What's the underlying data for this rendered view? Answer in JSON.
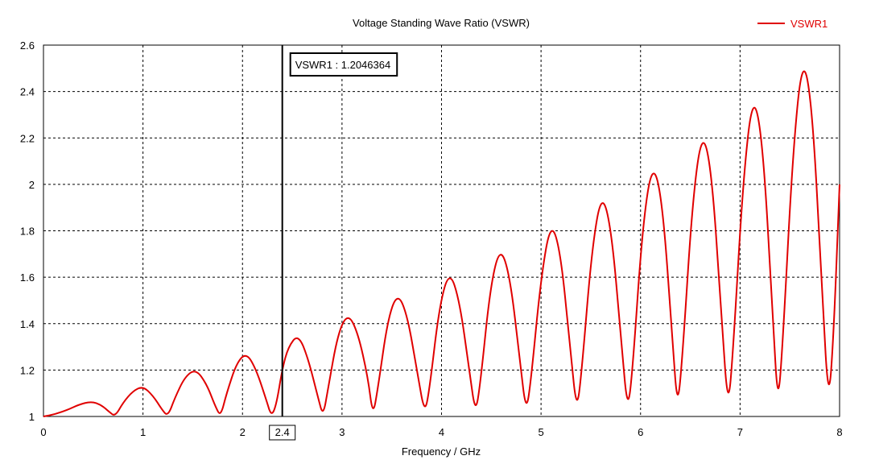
{
  "chart_data": {
    "type": "line",
    "title": "Voltage Standing Wave Ratio (VSWR)",
    "xlabel": "Frequency / GHz",
    "ylabel": "",
    "xlim": [
      0,
      8
    ],
    "ylim": [
      1,
      2.6
    ],
    "x_ticks": [
      "0",
      "1",
      "2",
      "3",
      "4",
      "5",
      "6",
      "7",
      "8"
    ],
    "y_ticks": [
      "1",
      "1.2",
      "1.4",
      "1.6",
      "1.8",
      "2",
      "2.2",
      "2.4",
      "2.6"
    ],
    "grid": true,
    "legend_position": "top-right",
    "series": [
      {
        "name": "VSWR1",
        "color": "#e00000",
        "x": [
          0,
          0.12,
          0.25,
          0.35,
          0.48,
          0.58,
          0.66,
          0.72,
          0.8,
          0.9,
          1.0,
          1.1,
          1.19,
          1.25,
          1.32,
          1.42,
          1.53,
          1.64,
          1.73,
          1.78,
          1.84,
          1.94,
          2.04,
          2.14,
          2.24,
          2.29,
          2.34,
          2.4,
          2.46,
          2.56,
          2.66,
          2.76,
          2.81,
          2.86,
          2.96,
          3.06,
          3.16,
          3.26,
          3.31,
          3.36,
          3.46,
          3.56,
          3.66,
          3.76,
          3.83,
          3.88,
          3.98,
          4.08,
          4.18,
          4.28,
          4.34,
          4.39,
          4.49,
          4.59,
          4.69,
          4.79,
          4.85,
          4.9,
          5.0,
          5.1,
          5.2,
          5.3,
          5.36,
          5.41,
          5.51,
          5.61,
          5.71,
          5.81,
          5.87,
          5.92,
          6.02,
          6.12,
          6.22,
          6.32,
          6.37,
          6.42,
          6.52,
          6.62,
          6.72,
          6.82,
          6.88,
          6.93,
          7.03,
          7.13,
          7.23,
          7.33,
          7.38,
          7.43,
          7.53,
          7.63,
          7.73,
          7.83,
          7.89,
          7.94,
          8.0
        ],
        "y": [
          1.0,
          1.01,
          1.03,
          1.05,
          1.065,
          1.05,
          1.02,
          1.0,
          1.06,
          1.11,
          1.13,
          1.09,
          1.03,
          1.0,
          1.08,
          1.17,
          1.205,
          1.14,
          1.04,
          1.0,
          1.1,
          1.23,
          1.275,
          1.2,
          1.07,
          1.0,
          1.05,
          1.2046,
          1.3,
          1.355,
          1.25,
          1.08,
          1.0,
          1.12,
          1.36,
          1.445,
          1.36,
          1.17,
          1.0,
          1.12,
          1.42,
          1.535,
          1.43,
          1.18,
          1.01,
          1.12,
          1.48,
          1.63,
          1.5,
          1.2,
          1.01,
          1.14,
          1.56,
          1.735,
          1.6,
          1.23,
          1.015,
          1.16,
          1.6,
          1.845,
          1.7,
          1.26,
          1.02,
          1.2,
          1.72,
          1.97,
          1.8,
          1.3,
          1.02,
          1.2,
          1.82,
          2.1,
          1.93,
          1.34,
          1.03,
          1.25,
          1.92,
          2.24,
          2.04,
          1.38,
          1.03,
          1.28,
          2.02,
          2.4,
          2.18,
          1.42,
          1.04,
          1.32,
          2.14,
          2.565,
          2.32,
          1.48,
          1.05,
          1.35,
          2.0
        ]
      }
    ],
    "marker": {
      "x": 2.4,
      "x_label": "2.4",
      "readout": "VSWR1 : 1.2046364",
      "color": "#e00000"
    }
  }
}
